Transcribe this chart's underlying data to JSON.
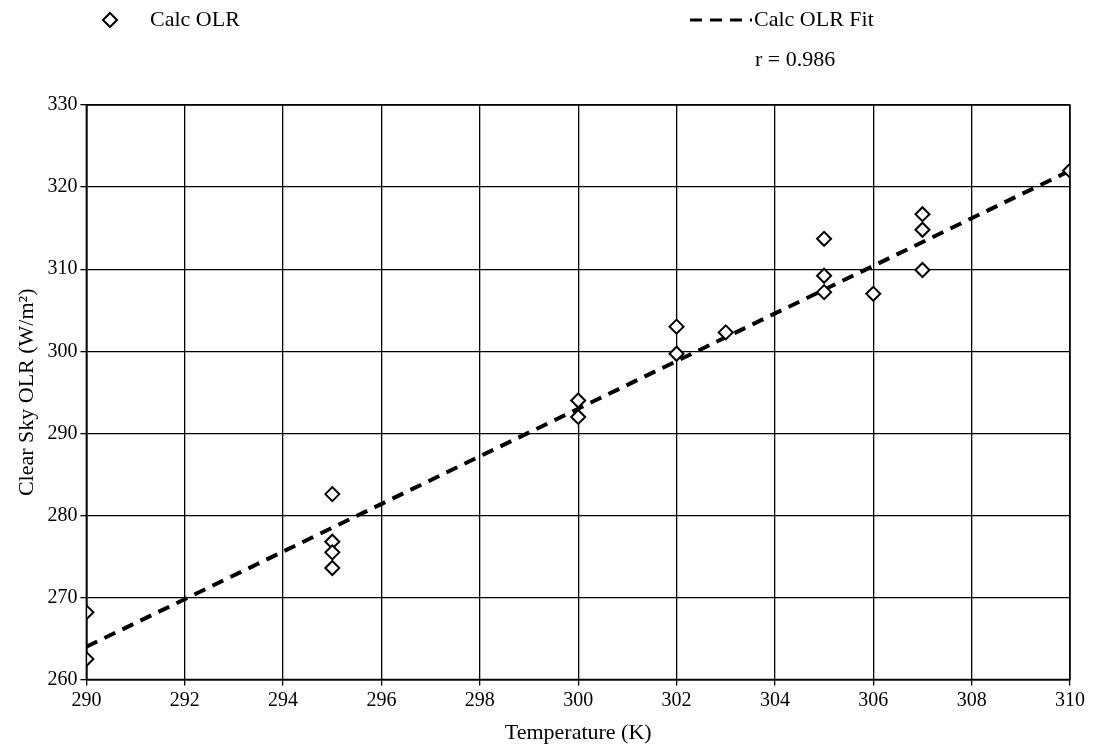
{
  "chart_data": {
    "type": "scatter",
    "xlabel": "Temperature (K)",
    "ylabel": "Clear Sky OLR (W/m²)",
    "xlim": [
      290,
      310
    ],
    "xticks": [
      290,
      292,
      294,
      296,
      298,
      300,
      302,
      304,
      306,
      308,
      310
    ],
    "ylim": [
      260,
      330
    ],
    "yticks": [
      260,
      270,
      280,
      290,
      300,
      310,
      320,
      330
    ],
    "grid": true,
    "legend": "top",
    "annotations": [
      "r = 0.986"
    ],
    "series": [
      {
        "name": "Calc OLR",
        "color": "#000000",
        "type": "scatter",
        "marker": "diamond",
        "x": [
          290,
          290,
          295,
          295,
          295,
          295,
          300,
          300,
          302,
          302,
          303,
          305,
          305,
          305,
          306,
          307,
          307,
          307,
          310
        ],
        "values": [
          268.2,
          262.5,
          282.6,
          276.8,
          275.5,
          273.6,
          294,
          292,
          303,
          299.7,
          302.3,
          313.7,
          309.2,
          307.2,
          307,
          316.7,
          314.8,
          309.9,
          322
        ]
      },
      {
        "name": "Calc OLR Fit",
        "color": "#000000",
        "type": "line",
        "line_style": "dashed",
        "marker": "none",
        "x": [
          290,
          310
        ],
        "values": [
          264,
          322
        ]
      }
    ]
  }
}
